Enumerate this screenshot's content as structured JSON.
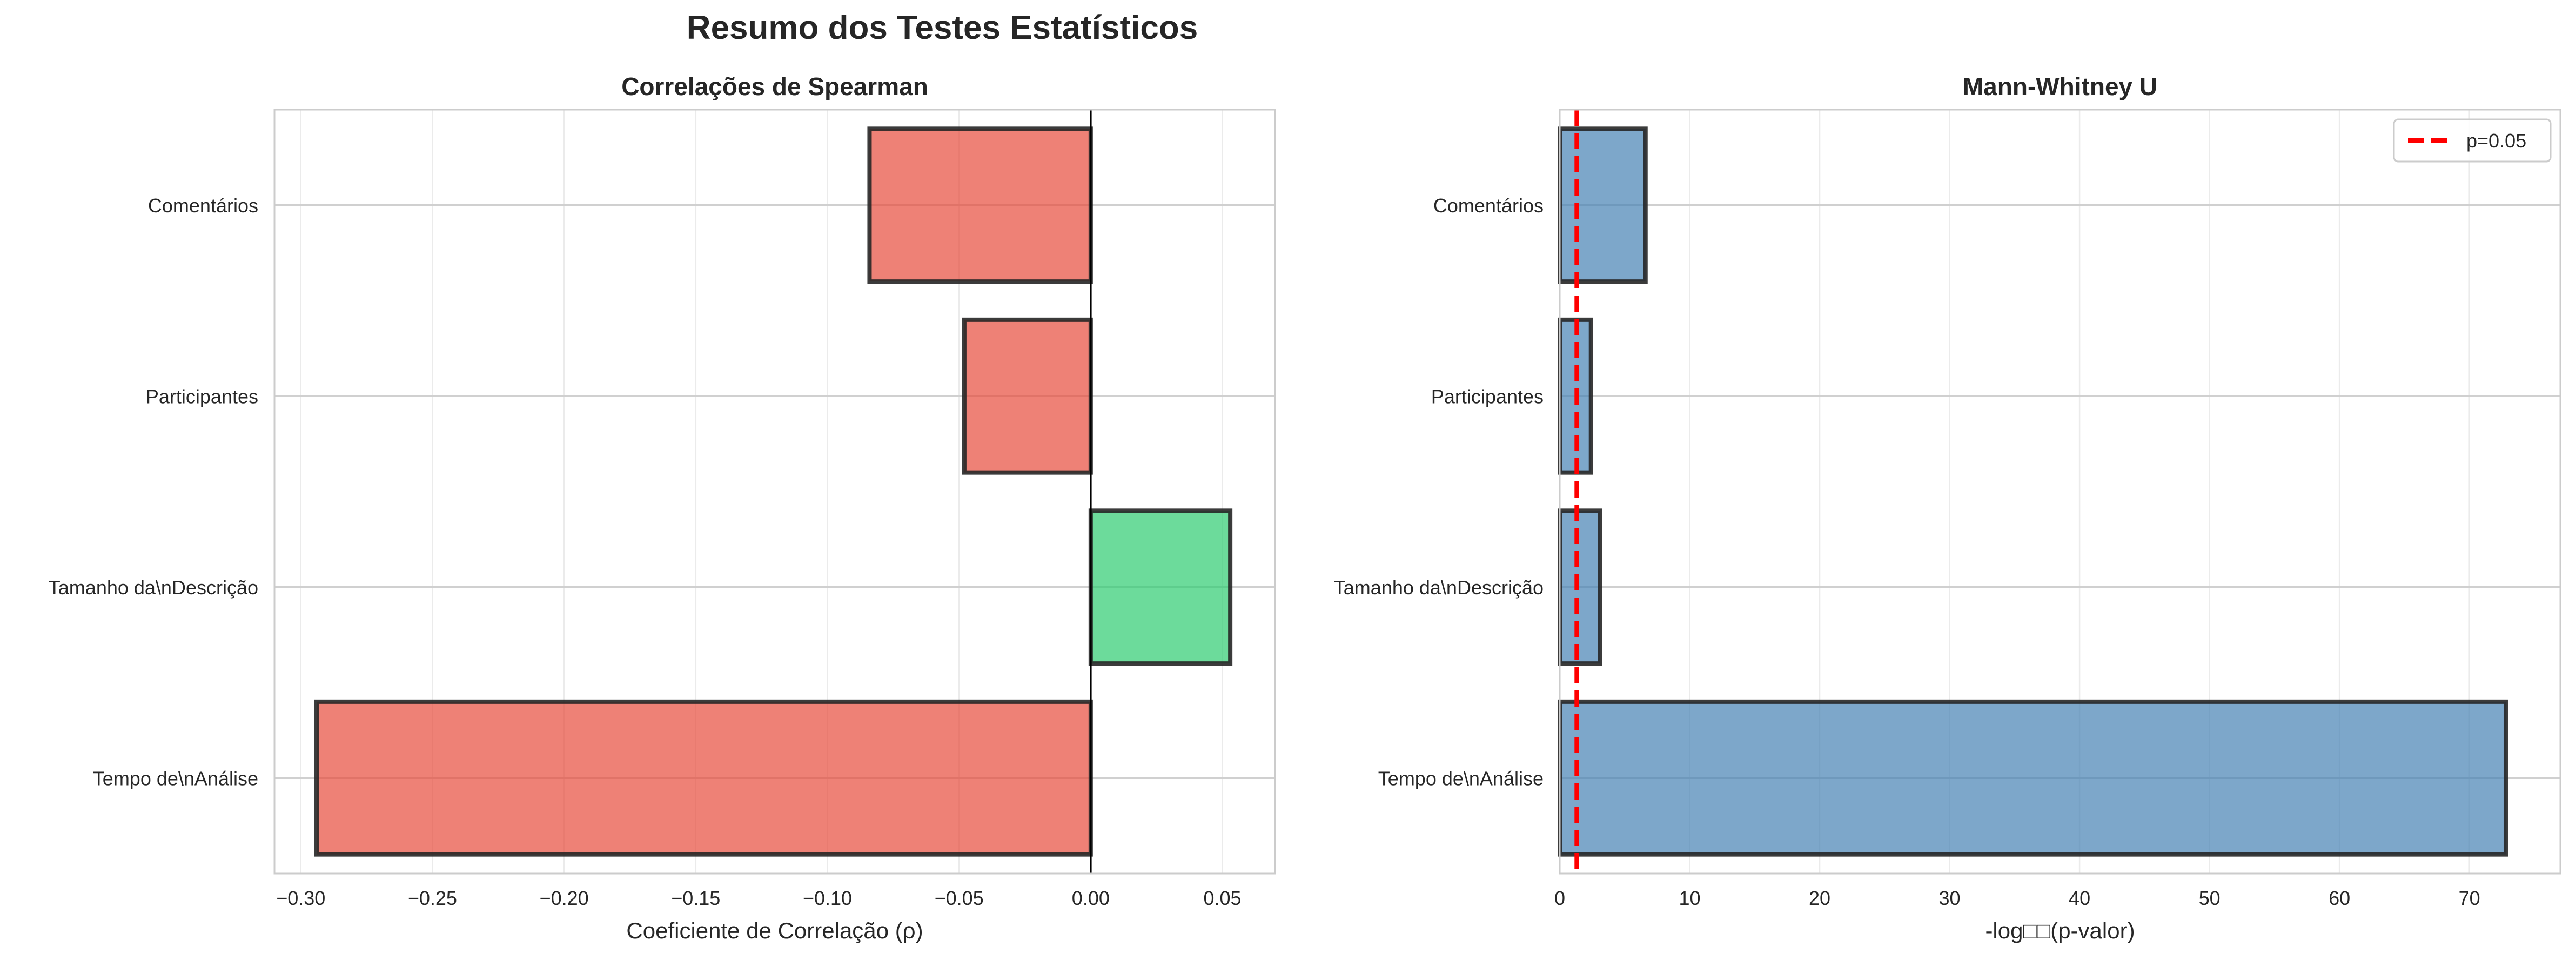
{
  "figure": {
    "title": "Resumo dos Testes Estatísticos"
  },
  "chart_data": [
    {
      "type": "bar",
      "orientation": "horizontal",
      "title": "Correlações de Spearman",
      "xlabel": "Coeficiente de Correlação (ρ)",
      "ylabel": "",
      "categories": [
        "Comentários",
        "Participantes",
        "Tamanho da\\nDescrição",
        "Tempo de\\nAnálise"
      ],
      "values": [
        -0.084,
        -0.048,
        0.053,
        -0.294
      ],
      "xlim": [
        -0.31,
        0.07
      ],
      "xticks": [
        -0.3,
        -0.25,
        -0.2,
        -0.15,
        -0.1,
        -0.05,
        0.0,
        0.05
      ],
      "xtick_labels": [
        "−0.30",
        "−0.25",
        "−0.20",
        "−0.15",
        "−0.10",
        "−0.05",
        "0.00",
        "0.05"
      ],
      "zero_line": true,
      "grid": true,
      "bar_colors": [
        "#e74c3c",
        "#e74c3c",
        "#2ecc71",
        "#e74c3c"
      ],
      "legend": null
    },
    {
      "type": "bar",
      "orientation": "horizontal",
      "title": "Mann-Whitney U",
      "xlabel": "-log□□(p-valor)",
      "ylabel": "",
      "categories": [
        "Comentários",
        "Participantes",
        "Tamanho da\\nDescrição",
        "Tempo de\\nAnálise"
      ],
      "values": [
        6.6,
        2.4,
        3.1,
        72.8
      ],
      "xlim": [
        0,
        77
      ],
      "xticks": [
        0,
        10,
        20,
        30,
        40,
        50,
        60,
        70
      ],
      "xtick_labels": [
        "0",
        "10",
        "20",
        "30",
        "40",
        "50",
        "60",
        "70"
      ],
      "threshold": {
        "value": 1.301,
        "label": "p=0.05",
        "color": "#ff0000"
      },
      "grid": true,
      "bar_colors": [
        "#4682b4",
        "#4682b4",
        "#4682b4",
        "#4682b4"
      ],
      "legend": {
        "position": "top-right",
        "entries": [
          "p=0.05"
        ]
      }
    }
  ]
}
